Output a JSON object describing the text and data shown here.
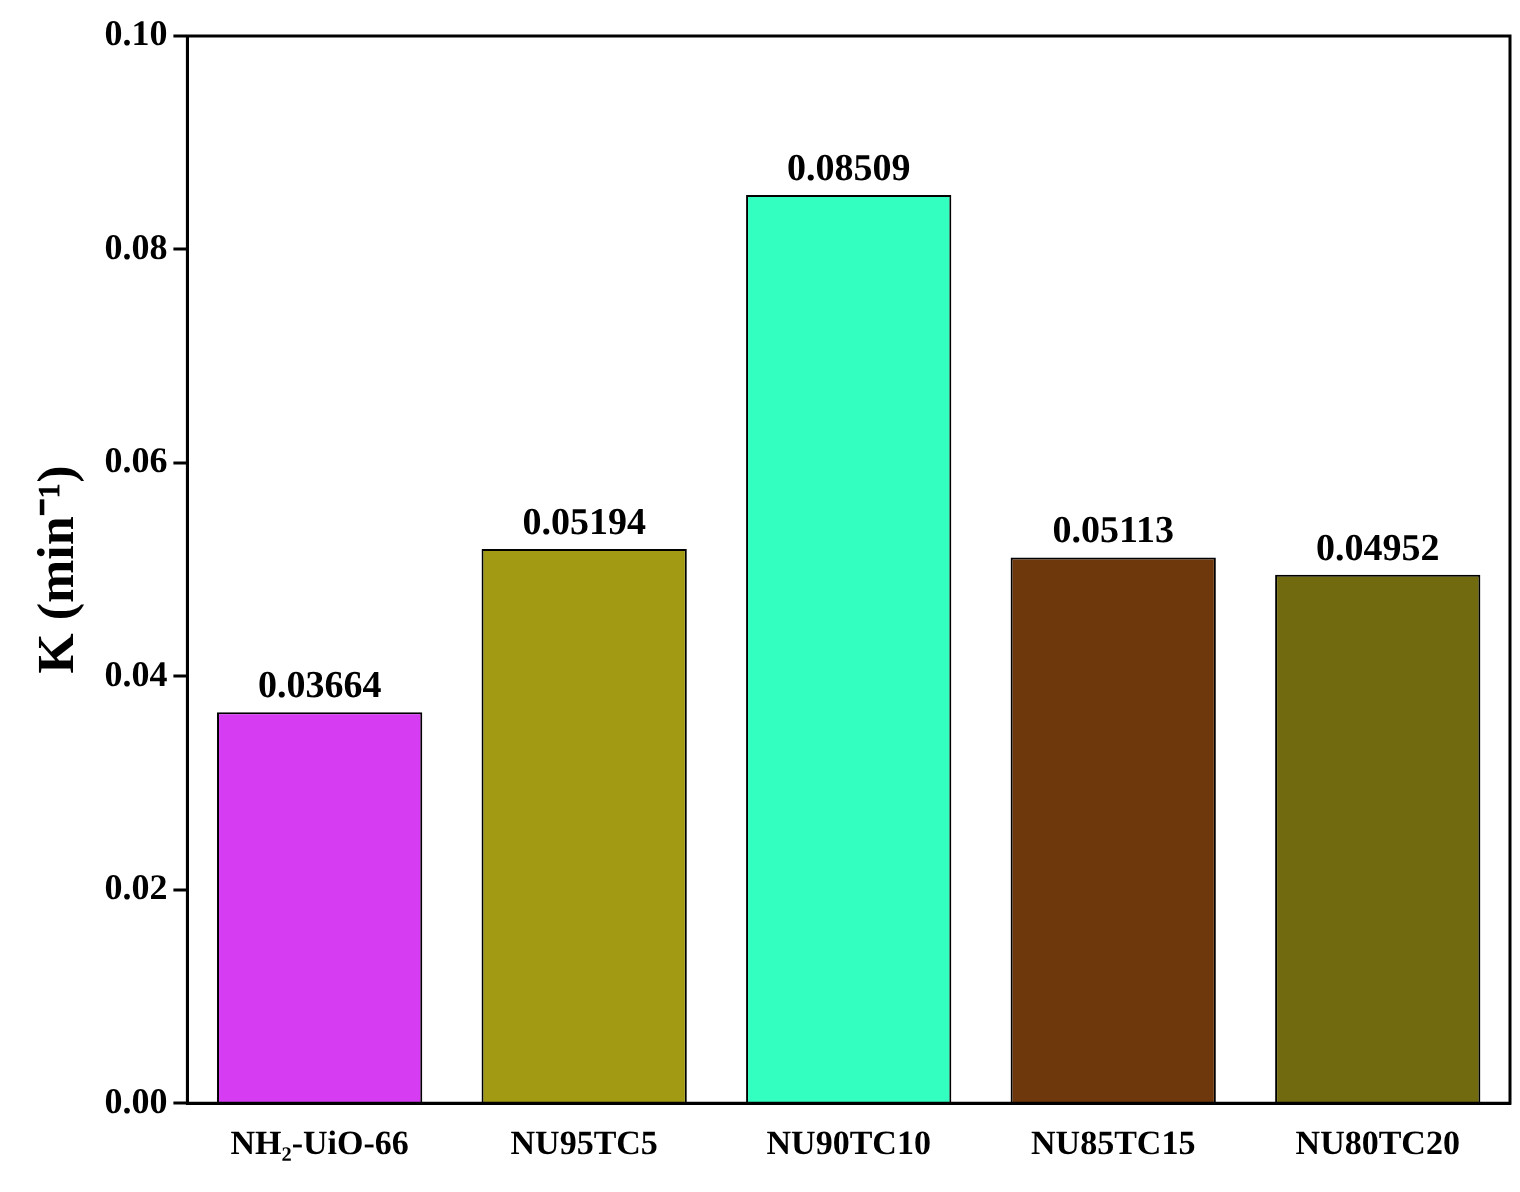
{
  "chart_data": {
    "type": "bar",
    "ylabel": "K (min⁻¹)",
    "categories": [
      "NH₂-UiO-66",
      "NU95TC5",
      "NU90TC10",
      "NU85TC15",
      "NU80TC20"
    ],
    "values": [
      0.03664,
      0.05194,
      0.08509,
      0.05113,
      0.04952
    ],
    "colors": [
      "#d63cf2",
      "#a39a14",
      "#33ffc0",
      "#6e380c",
      "#716a0e"
    ],
    "ylim": [
      0,
      0.1
    ],
    "yticks": [
      "0.00",
      "0.02",
      "0.04",
      "0.06",
      "0.08",
      "0.10"
    ],
    "data_labels": true,
    "grid": false,
    "legend": false
  }
}
